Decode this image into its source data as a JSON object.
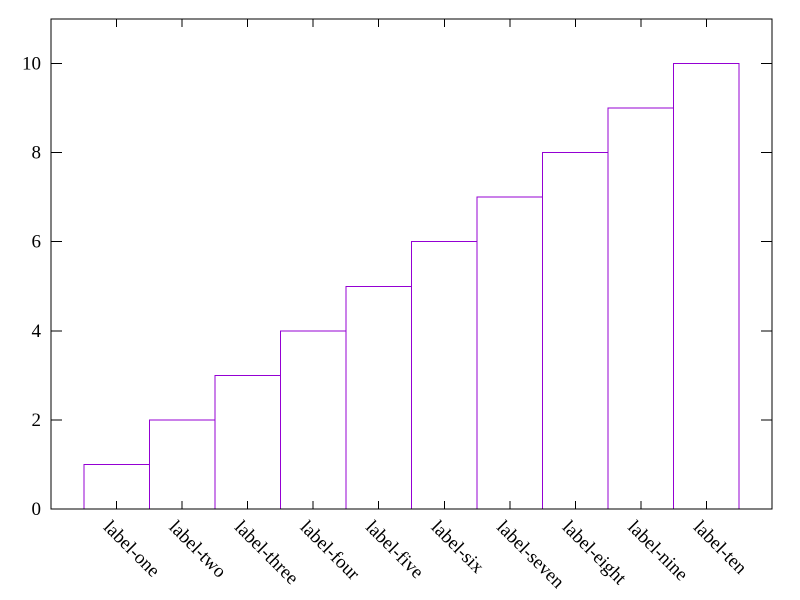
{
  "chart_data": {
    "type": "bar",
    "title": "",
    "xlabel": "",
    "ylabel": "",
    "categories": [
      "label-one",
      "label-two",
      "label-three",
      "label-four",
      "label-five",
      "label-six",
      "label-seven",
      "label-eight",
      "label-nine",
      "label-ten"
    ],
    "values": [
      1,
      2,
      3,
      4,
      5,
      6,
      7,
      8,
      9,
      10
    ],
    "yticks": [
      0,
      2,
      4,
      6,
      8,
      10
    ],
    "xlim": [
      0,
      11
    ],
    "ylim": [
      0,
      11
    ],
    "grid": false,
    "legend": null,
    "bar_style": "outline",
    "bar_outline_color": "#9400d3",
    "bar_fill_color": "#ffffff",
    "axis_color": "#000000",
    "text_color": "#000000",
    "background_color": "#ffffff",
    "x_tick_label_rotation_deg": 45
  }
}
